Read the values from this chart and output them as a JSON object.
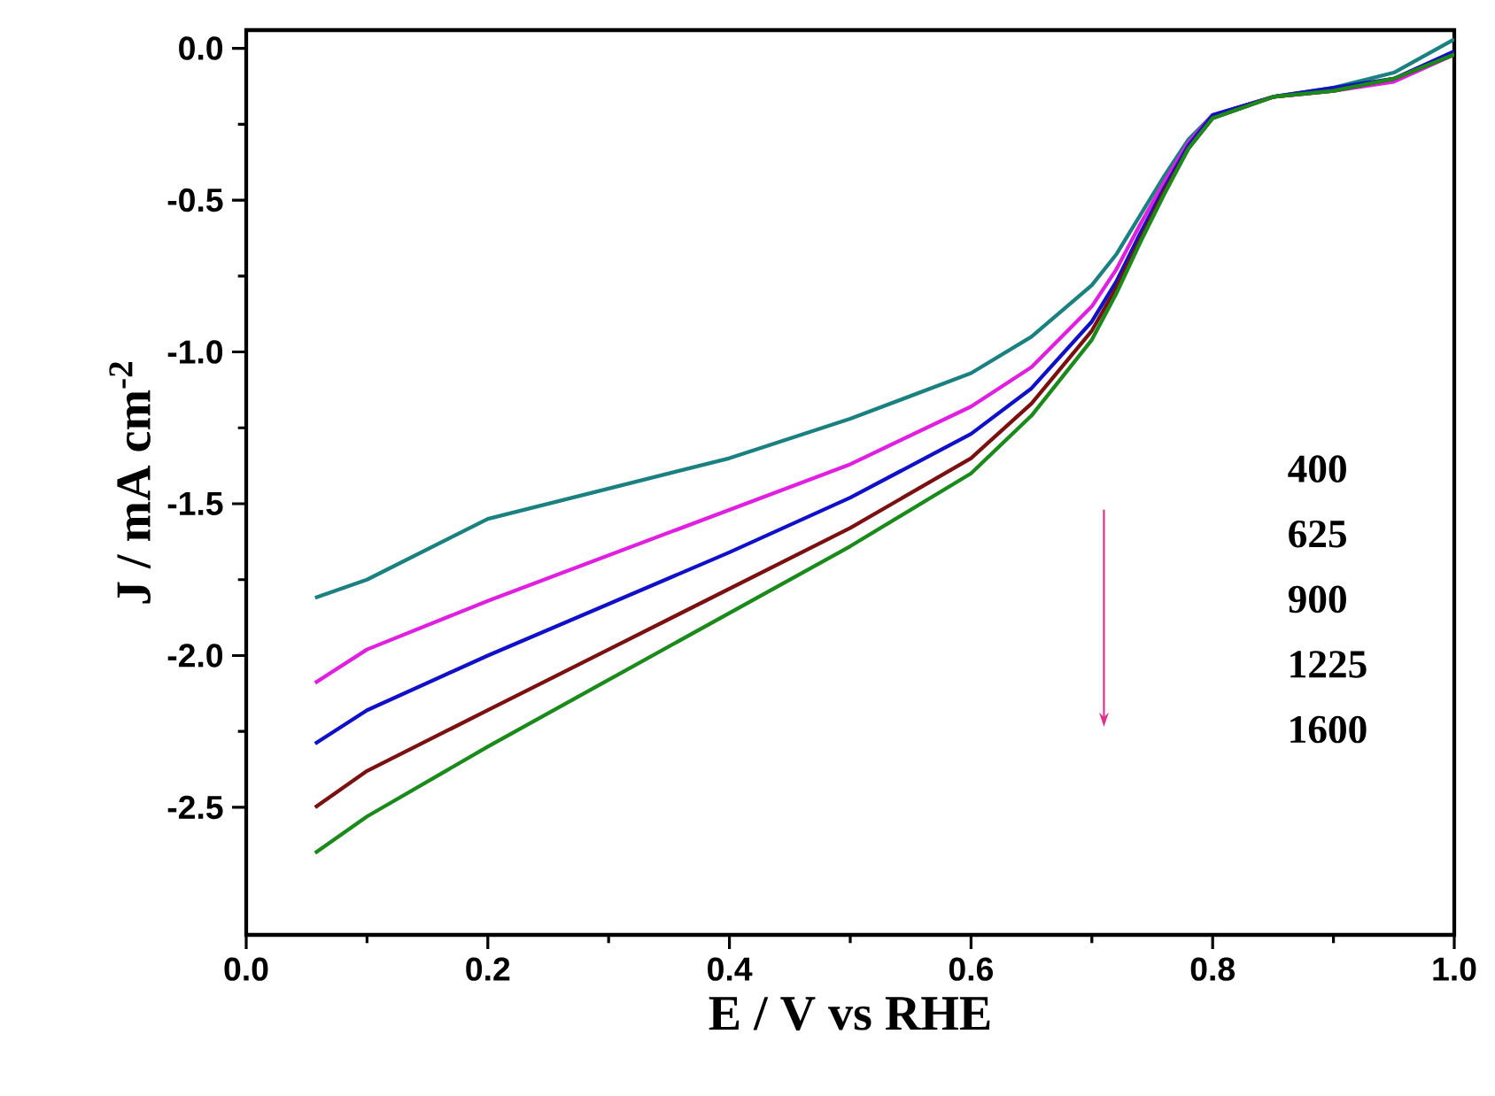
{
  "chart_data": {
    "type": "line",
    "xlabel": "E / V vs RHE",
    "ylabel": "J / mA cm$^{-2}$",
    "x": [
      0.057,
      0.1,
      0.2,
      0.3,
      0.4,
      0.5,
      0.6,
      0.65,
      0.7,
      0.72,
      0.74,
      0.76,
      0.78,
      0.8,
      0.85,
      0.9,
      0.95,
      1.0
    ],
    "series": [
      {
        "color": "#1a8080",
        "values": [
          -1.81,
          -1.75,
          -1.55,
          -1.45,
          -1.35,
          -1.22,
          -1.07,
          -0.95,
          -0.78,
          -0.68,
          -0.55,
          -0.42,
          -0.3,
          -0.22,
          -0.16,
          -0.13,
          -0.08,
          0.03
        ]
      },
      {
        "color": "#e020e0",
        "values": [
          -2.09,
          -1.98,
          -1.82,
          -1.67,
          -1.52,
          -1.37,
          -1.18,
          -1.05,
          -0.85,
          -0.73,
          -0.58,
          -0.44,
          -0.31,
          -0.22,
          -0.16,
          -0.14,
          -0.11,
          -0.02
        ]
      },
      {
        "color": "#1010c8",
        "values": [
          -2.29,
          -2.18,
          -2.0,
          -1.83,
          -1.66,
          -1.48,
          -1.27,
          -1.12,
          -0.9,
          -0.77,
          -0.61,
          -0.46,
          -0.32,
          -0.22,
          -0.16,
          -0.13,
          -0.1,
          -0.01
        ]
      },
      {
        "color": "#7a1010",
        "values": [
          -2.5,
          -2.38,
          -2.18,
          -1.98,
          -1.78,
          -1.58,
          -1.35,
          -1.17,
          -0.93,
          -0.79,
          -0.63,
          -0.47,
          -0.33,
          -0.23,
          -0.16,
          -0.14,
          -0.1,
          -0.02
        ]
      },
      {
        "color": "#1a8a1a",
        "values": [
          -2.65,
          -2.53,
          -2.3,
          -2.08,
          -1.86,
          -1.64,
          -1.4,
          -1.21,
          -0.96,
          -0.81,
          -0.64,
          -0.48,
          -0.33,
          -0.23,
          -0.16,
          -0.14,
          -0.1,
          -0.02
        ]
      }
    ],
    "annotations": [
      "400",
      "625",
      "900",
      "1225",
      "1600"
    ],
    "xlim": [
      0,
      1.0
    ],
    "xticks": [
      {
        "value": 0,
        "label": "0.0"
      },
      0.2,
      0.4,
      0.6,
      0.8,
      {
        "value": 1.0,
        "label": "1.0"
      }
    ],
    "ylim": [
      -2.92,
      0.06
    ],
    "yticks": [
      -2.5,
      {
        "value": -2.0,
        "label": "-2.0"
      },
      -1.5,
      {
        "value": -1.0,
        "label": "-1.0"
      },
      -0.5,
      {
        "value": 0,
        "label": "0.0"
      }
    ]
  }
}
